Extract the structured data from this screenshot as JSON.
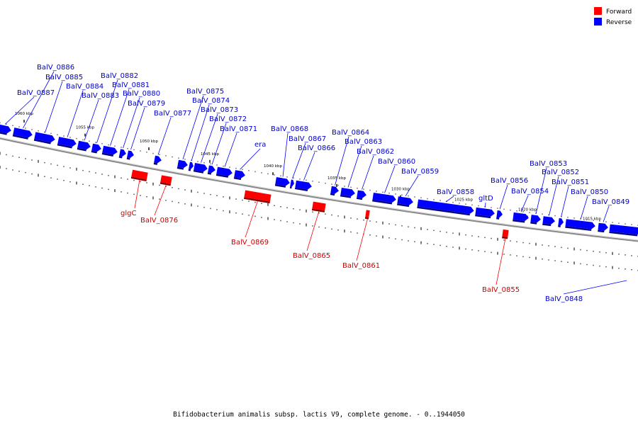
{
  "caption": "Bifidobacterium animalis subsp. lactis V9, complete genome. - 0..1944050",
  "legend": [
    {
      "label": "Forward",
      "color": "#ff0000"
    },
    {
      "label": "Reverse",
      "color": "#0000ff"
    }
  ],
  "ticks": [
    "1060 kbp",
    "1055 kbp",
    "1050 kbp",
    "1045 kbp",
    "1040 kbp",
    "1035 kbp",
    "1030 kbp",
    "1025 kbp",
    "1020 kbp",
    "1015 kbp"
  ],
  "genes_reverse": [
    "BalV_0887",
    "BalV_0886",
    "BalV_0885",
    "BalV_0884",
    "BalV_0883",
    "BalV_0882",
    "BalV_0881",
    "BalV_0880",
    "BalV_0879",
    "BalV_0877",
    "BalV_0875",
    "BalV_0874",
    "BalV_0873",
    "BalV_0872",
    "BalV_0871",
    "era",
    "BalV_0868",
    "BalV_0867",
    "BalV_0866",
    "BalV_0864",
    "BalV_0863",
    "BalV_0862",
    "BalV_0860",
    "BalV_0859",
    "BalV_0858",
    "gltD",
    "BalV_0856",
    "BalV_0854",
    "BalV_0853",
    "BalV_0852",
    "BalV_0851",
    "BalV_0850",
    "BalV_0849",
    "BalV_0848"
  ],
  "genes_forward": [
    "glgC",
    "BalV_0876",
    "BalV_0869",
    "BalV_0865",
    "BalV_0861",
    "BalV_0855"
  ]
}
